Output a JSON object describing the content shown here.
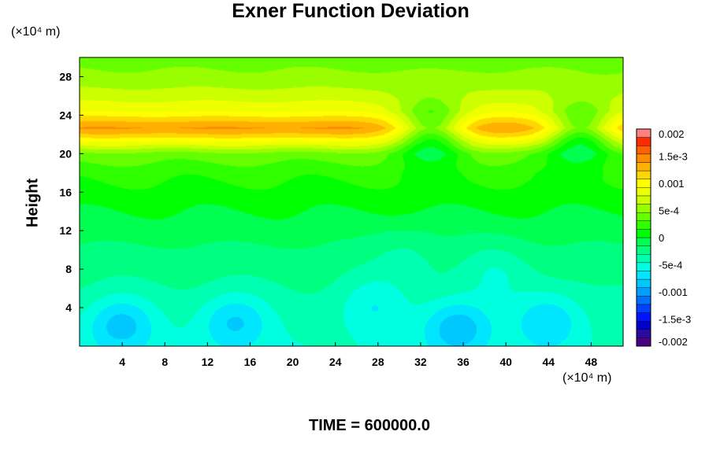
{
  "title": "Exner Function Deviation",
  "y_unit_label": "(×10⁴ m)",
  "x_unit_label": "(×10⁴ m)",
  "time_label": "TIME = 600000.0",
  "chart_data": {
    "type": "heatmap",
    "title": "Exner Function Deviation",
    "xlabel": "",
    "ylabel": "Height",
    "x_unit": "(×10⁴ m)",
    "y_unit": "(×10⁴ m)",
    "xlim": [
      0,
      51
    ],
    "ylim": [
      0,
      30
    ],
    "x_ticks": [
      4,
      8,
      12,
      16,
      20,
      24,
      28,
      32,
      36,
      40,
      44,
      48
    ],
    "y_ticks": [
      4,
      8,
      12,
      16,
      20,
      24,
      28
    ],
    "colorbar": {
      "tick_labels": [
        "0.002",
        "1.5e-3",
        "0.001",
        "5e-4",
        "0",
        "-5e-4",
        "-0.001",
        "-1.5e-3",
        "-0.002"
      ],
      "tick_values": [
        0.002,
        0.0015,
        0.001,
        0.0005,
        0,
        -0.0005,
        -0.001,
        -0.0015,
        -0.002
      ],
      "range": [
        -0.002,
        0.002
      ],
      "levels": 26,
      "colors": [
        "#4b0082",
        "#2a0aa0",
        "#0000cd",
        "#0014ff",
        "#0040ff",
        "#0070ff",
        "#00a0ff",
        "#00c8ff",
        "#00e6ff",
        "#00ffe0",
        "#00ffb0",
        "#00ff80",
        "#00ff50",
        "#00ff00",
        "#30ff00",
        "#66ff00",
        "#99ff00",
        "#ccff00",
        "#eeff00",
        "#ffff00",
        "#ffd700",
        "#ffb000",
        "#ff8c00",
        "#ff6000",
        "#ff2a00",
        "#ff8080"
      ]
    },
    "vertical_profile": [
      {
        "y": 0,
        "value": -0.00045
      },
      {
        "y": 4,
        "value": -0.00035
      },
      {
        "y": 8,
        "value": -0.00025
      },
      {
        "y": 12,
        "value": -0.0001
      },
      {
        "y": 16,
        "value": 0.0001
      },
      {
        "y": 18,
        "value": 0.0002
      },
      {
        "y": 20,
        "value": 0.0004
      },
      {
        "y": 21,
        "value": 0.0008
      },
      {
        "y": 22,
        "value": 0.0012
      },
      {
        "y": 22.7,
        "value": 0.0014
      },
      {
        "y": 23.5,
        "value": 0.0012
      },
      {
        "y": 24.5,
        "value": 0.0009
      },
      {
        "y": 26,
        "value": 0.0007
      },
      {
        "y": 28,
        "value": 0.0005
      },
      {
        "y": 30,
        "value": 0.0004
      }
    ],
    "anomalies": [
      {
        "x": 3.8,
        "y": 2.3,
        "value": -0.00085
      },
      {
        "x": 14.5,
        "y": 2.6,
        "value": -0.0008
      },
      {
        "x": 27.5,
        "y": 4.3,
        "value": -0.0006
      },
      {
        "x": 35.5,
        "y": 2.0,
        "value": -0.0009
      },
      {
        "x": 44,
        "y": 2.8,
        "value": -0.00075
      },
      {
        "x": 39,
        "y": 8,
        "value": -0.00045
      },
      {
        "x": 30.5,
        "y": 9.5,
        "value": -0.00035
      },
      {
        "x": 33,
        "y": 22.5,
        "value": 0.0004
      },
      {
        "x": 47,
        "y": 22.3,
        "value": 0.0003
      }
    ]
  }
}
